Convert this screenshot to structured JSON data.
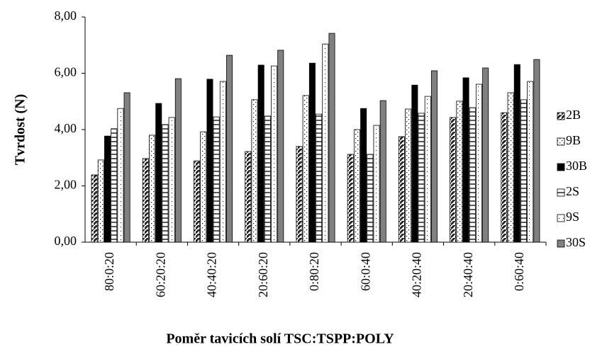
{
  "chart_data": {
    "type": "bar",
    "categories": [
      "80:0:20",
      "60:20:20",
      "40:40:20",
      "20:60:20",
      "0:80:20",
      "60:0:40",
      "40:20:40",
      "20:40:40",
      "0:60:40"
    ],
    "series": [
      {
        "name": "2B",
        "color": "#ffffff",
        "pattern": "diagonal",
        "values": [
          2.39,
          2.97,
          2.89,
          3.22,
          3.4,
          3.12,
          3.75,
          4.43,
          4.6
        ]
      },
      {
        "name": "9B",
        "color": "#ffffff",
        "pattern": "dense-dots",
        "values": [
          2.92,
          3.8,
          3.92,
          5.06,
          5.21,
          4.0,
          4.73,
          5.01,
          5.31
        ]
      },
      {
        "name": "30B",
        "color": "#000000",
        "pattern": "solid",
        "values": [
          3.77,
          4.93,
          5.79,
          6.29,
          6.36,
          4.75,
          5.58,
          5.84,
          6.31
        ]
      },
      {
        "name": "2S",
        "color": "#ffffff",
        "pattern": "horizontal",
        "values": [
          4.03,
          4.18,
          4.45,
          4.48,
          4.55,
          3.12,
          4.58,
          4.78,
          5.06
        ]
      },
      {
        "name": "9S",
        "color": "#ffffff",
        "pattern": "sparse-dots",
        "values": [
          4.75,
          4.43,
          5.71,
          6.26,
          7.04,
          4.15,
          5.18,
          5.61,
          5.71
        ]
      },
      {
        "name": "30S",
        "color": "#808080",
        "pattern": "solid",
        "values": [
          5.31,
          5.81,
          6.64,
          6.82,
          7.42,
          5.03,
          6.09,
          6.19,
          6.49
        ]
      }
    ],
    "ylim": [
      0,
      8
    ],
    "yticks": [
      {
        "value": 0,
        "label": "0,00"
      },
      {
        "value": 2,
        "label": "2,00"
      },
      {
        "value": 4,
        "label": "4,00"
      },
      {
        "value": 6,
        "label": "6,00"
      },
      {
        "value": 8,
        "label": "8,00"
      }
    ],
    "y_label": "Tvrdost (N)",
    "x_label": "Poměr tavicích solí TSC:TSPP:POLY",
    "legend": "right",
    "grid": false
  }
}
